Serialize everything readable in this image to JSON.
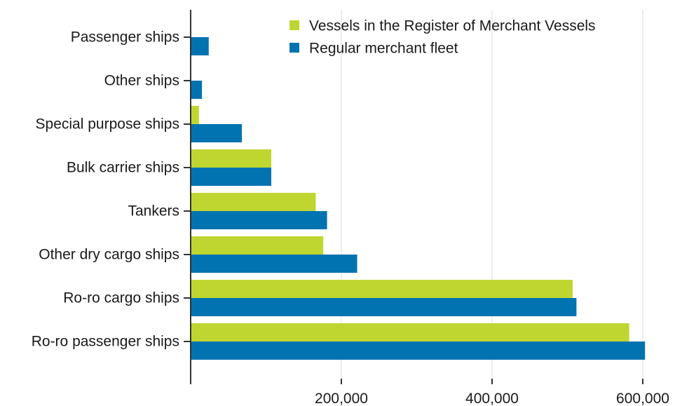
{
  "chart_data": {
    "type": "bar",
    "orientation": "horizontal",
    "categories": [
      "Passenger ships",
      "Other ships",
      "Special purpose ships",
      "Bulk carrier ships",
      "Tankers",
      "Other dry cargo ships",
      "Ro-ro cargo ships",
      "Ro-ro passenger ships"
    ],
    "series": [
      {
        "name": "Vessels in the Register of Merchant Vessels",
        "color": "#bfd630",
        "values": [
          0,
          0,
          11000,
          107000,
          166000,
          176000,
          507000,
          582000
        ]
      },
      {
        "name": "Regular merchant fleet",
        "color": "#0073b0",
        "values": [
          24000,
          15000,
          68000,
          107000,
          181000,
          221000,
          512000,
          603000
        ]
      }
    ],
    "xlim": [
      0,
      600000
    ],
    "xticks": [
      {
        "value": 0,
        "label": ""
      },
      {
        "value": 200000,
        "label": "200,000"
      },
      {
        "value": 400000,
        "label": "400,000"
      },
      {
        "value": 600000,
        "label": "600,000"
      }
    ],
    "grid": "vertical",
    "legend_position": "top-right",
    "title": "",
    "xlabel": "",
    "ylabel": ""
  }
}
